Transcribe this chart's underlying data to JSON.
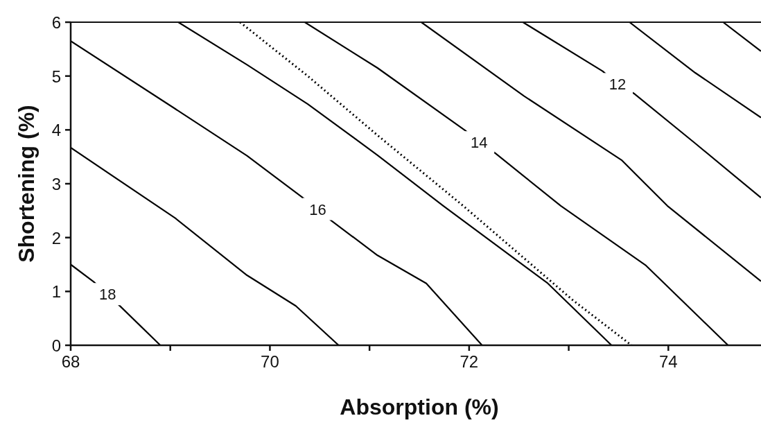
{
  "chart_data": {
    "type": "line",
    "xlabel": "Absorption (%)",
    "ylabel": "Shortening (%)",
    "xlim": [
      68,
      75
    ],
    "ylim": [
      0,
      6
    ],
    "xticks": [
      68,
      {
        "value": 69,
        "label": null
      },
      70,
      {
        "value": 71,
        "label": null
      },
      72,
      {
        "value": 73,
        "label": null
      },
      74
    ],
    "yticks": [
      0,
      1,
      2,
      3,
      4,
      5,
      6
    ],
    "marker": "none",
    "line_style": "solid",
    "series": [
      {
        "color": "#000000",
        "x": [
          68,
          68.23,
          68.37,
          68.5,
          68.9
        ],
        "values": [
          1.5,
          1.18,
          0.95,
          0.72,
          0
        ]
      },
      {
        "color": "#000000",
        "x": [
          68,
          69.05,
          69.77,
          70.26,
          70.69
        ],
        "values": [
          3.67,
          2.36,
          1.3,
          0.73,
          0
        ]
      },
      {
        "color": "#000000",
        "x": [
          68,
          69.05,
          69.77,
          70.33,
          70.48,
          70.62,
          71.08,
          71.57,
          72.13
        ],
        "values": [
          5.65,
          4.39,
          3.52,
          2.74,
          2.53,
          2.31,
          1.67,
          1.15,
          0
        ]
      },
      {
        "color": "#000000",
        "x": [
          69.08,
          69.77,
          70.38,
          71.08,
          71.74,
          72.79,
          73.43
        ],
        "values": [
          6,
          5.21,
          4.48,
          3.53,
          2.59,
          1.15,
          0
        ]
      },
      {
        "color": "#000000",
        "line_style": "dotted",
        "x": [
          69.7,
          70.38,
          71.08,
          71.94,
          73.04,
          73.63
        ],
        "values": [
          6,
          5.0,
          3.9,
          2.59,
          0.84,
          0
        ]
      },
      {
        "color": "#000000",
        "x": [
          70.35,
          71.08,
          71.96,
          72.1,
          72.26,
          72.92,
          73.77,
          74.6
        ],
        "values": [
          6,
          5.15,
          3.99,
          3.77,
          3.57,
          2.59,
          1.49,
          0
        ]
      },
      {
        "color": "#000000",
        "x": [
          71.52,
          72.55,
          73.53,
          73.99,
          74.93
        ],
        "values": [
          6,
          4.63,
          3.44,
          2.59,
          1.19
        ]
      },
      {
        "color": "#000000",
        "x": [
          72.54,
          73.34,
          73.49,
          73.66,
          74.27,
          74.93
        ],
        "values": [
          6,
          5.09,
          4.85,
          4.67,
          3.75,
          2.74
        ]
      },
      {
        "color": "#000000",
        "x": [
          73.61,
          74.27,
          74.93
        ],
        "values": [
          6,
          5.06,
          4.23
        ]
      },
      {
        "color": "#000000",
        "x": [
          74.55,
          74.93
        ],
        "values": [
          6,
          5.46
        ]
      }
    ],
    "annotations": [
      {
        "text": "18",
        "x": 68.37,
        "y": 0.95
      },
      {
        "text": "16",
        "x": 70.48,
        "y": 2.53
      },
      {
        "text": "14",
        "x": 72.1,
        "y": 3.77
      },
      {
        "text": "12",
        "x": 73.49,
        "y": 4.85
      }
    ]
  }
}
